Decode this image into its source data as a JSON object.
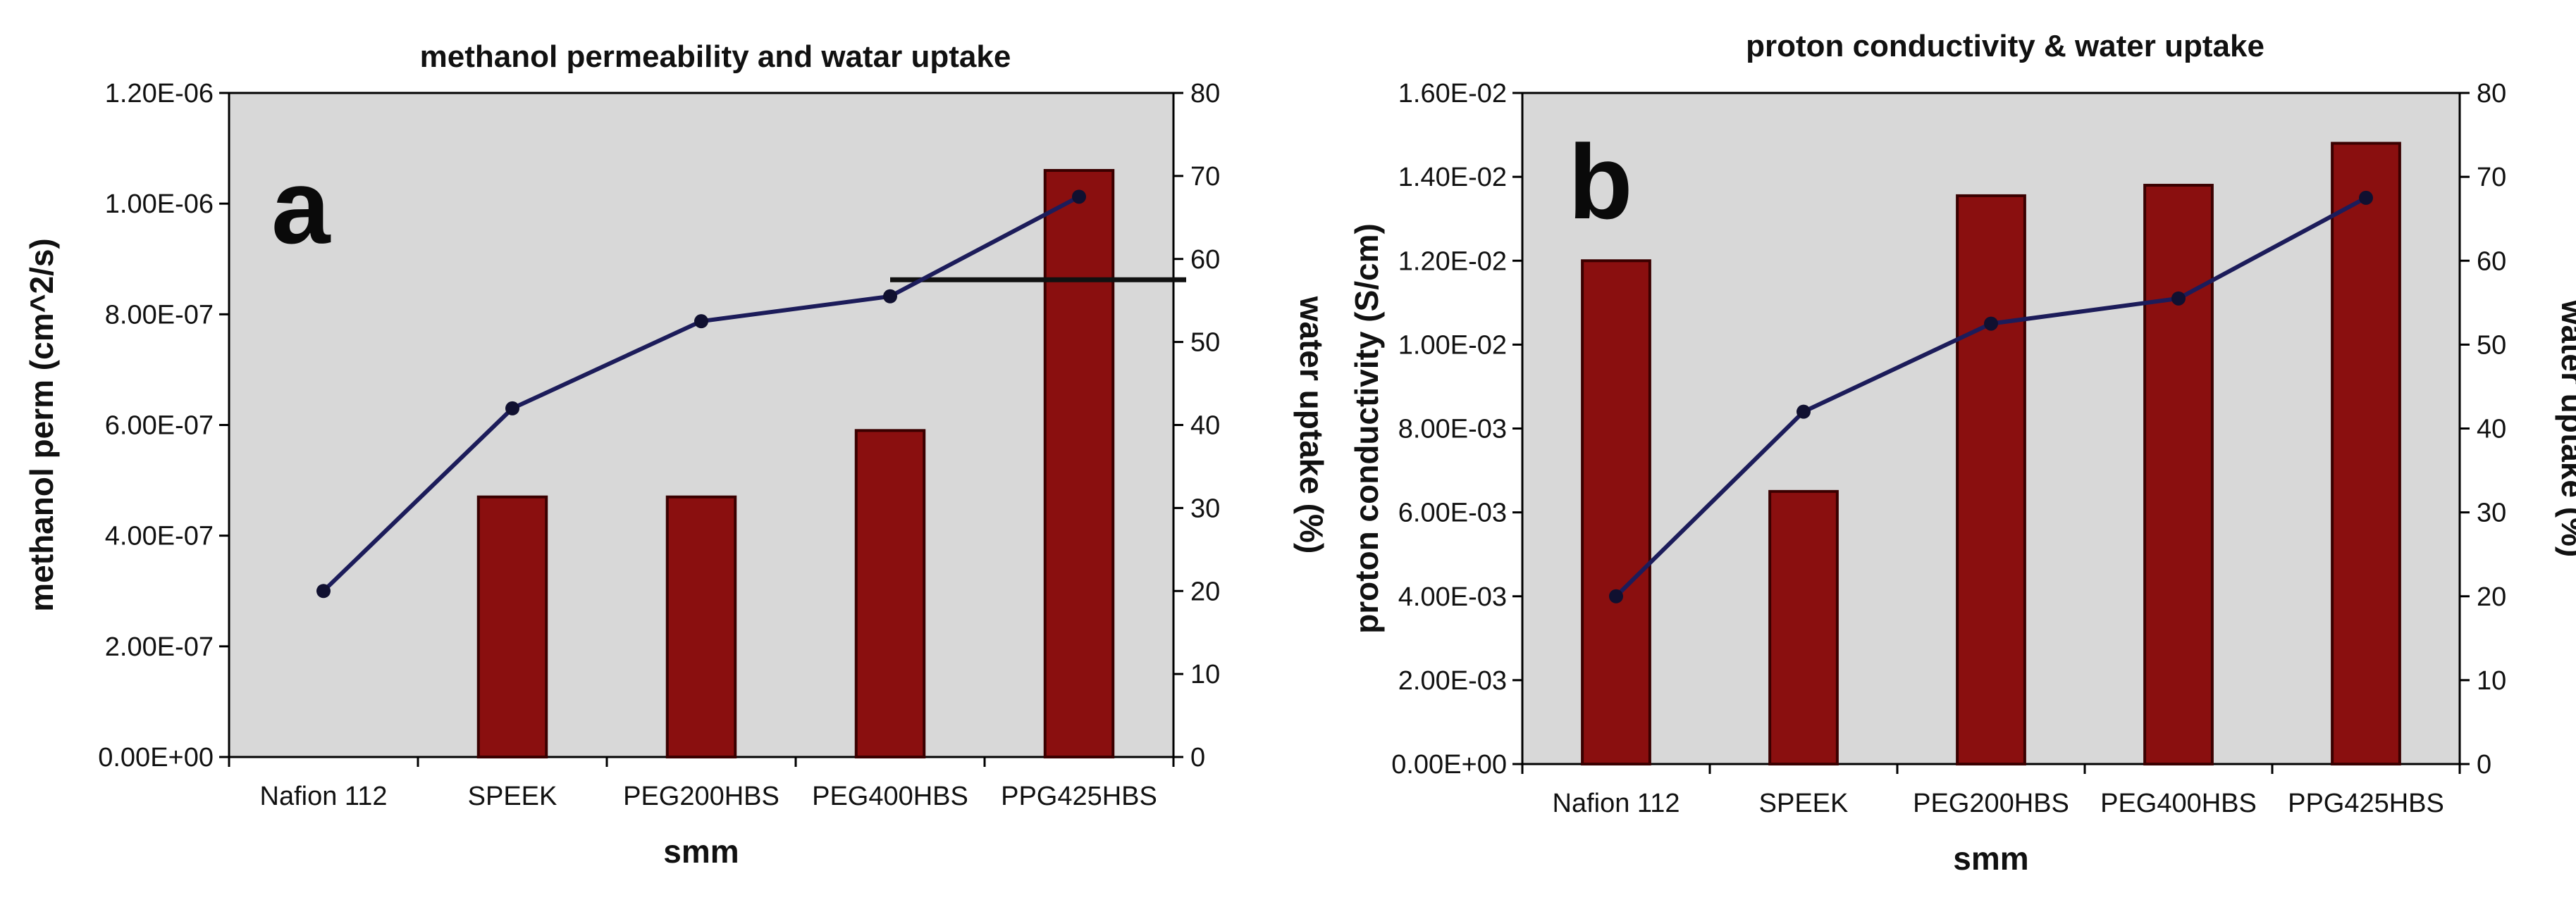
{
  "colors": {
    "plot_bg": "#d8d8d8",
    "bar_fill": "#8a0f0f",
    "bar_edge": "#3a0000",
    "line": "#1c1c5a",
    "axis": "#000000"
  },
  "chart_data": [
    {
      "type": "bar",
      "panel_label": "a",
      "title": "methanol permeability and watar uptake",
      "xlabel": "smm",
      "ylabel": "methanol perm (cm^2/s)",
      "y2label": "water uptake (%)",
      "categories": [
        "Nafion 112",
        "SPEEK",
        "PEG200HBS",
        "PEG400HBS",
        "PPG425HBS"
      ],
      "ylim": [
        0,
        1.2e-06
      ],
      "yticks": [
        "0.00E+00",
        "2.00E-07",
        "4.00E-07",
        "6.00E-07",
        "8.00E-07",
        "1.00E-06",
        "1.20E-06"
      ],
      "y2lim": [
        0,
        80
      ],
      "y2ticks": [
        "0",
        "10",
        "20",
        "30",
        "40",
        "50",
        "60",
        "70",
        "80"
      ],
      "series": [
        {
          "name": "methanol permeability",
          "axis": "left",
          "kind": "bar",
          "values": [
            null,
            4.7e-07,
            4.7e-07,
            5.9e-07,
            1.06e-06
          ]
        },
        {
          "name": "water uptake",
          "axis": "right",
          "kind": "line",
          "values": [
            20,
            42,
            52.5,
            55.5,
            67.5
          ]
        }
      ],
      "annotations": [
        {
          "type": "hline",
          "axis": "right",
          "y": 57.5,
          "x_from_category": "PEG400HBS",
          "x_to": "right-edge"
        }
      ]
    },
    {
      "type": "bar",
      "panel_label": "b",
      "title": "proton conductivity & water uptake",
      "xlabel": "smm",
      "ylabel": "proton conductivity (S/cm)",
      "y2label": "water uptake (%)",
      "categories": [
        "Nafion 112",
        "SPEEK",
        "PEG200HBS",
        "PEG400HBS",
        "PPG425HBS"
      ],
      "ylim": [
        0,
        0.016
      ],
      "yticks": [
        "0.00E+00",
        "2.00E-03",
        "4.00E-03",
        "6.00E-03",
        "8.00E-03",
        "1.00E-02",
        "1.20E-02",
        "1.40E-02",
        "1.60E-02"
      ],
      "y2lim": [
        0,
        80
      ],
      "y2ticks": [
        "0",
        "10",
        "20",
        "30",
        "40",
        "50",
        "60",
        "70",
        "80"
      ],
      "series": [
        {
          "name": "proton conductivity",
          "axis": "left",
          "kind": "bar",
          "values": [
            0.012,
            0.0065,
            0.01355,
            0.0138,
            0.0148
          ]
        },
        {
          "name": "water uptake",
          "axis": "right",
          "kind": "line",
          "values": [
            20,
            42,
            52.5,
            55.5,
            67.5
          ]
        }
      ],
      "annotations": []
    }
  ]
}
